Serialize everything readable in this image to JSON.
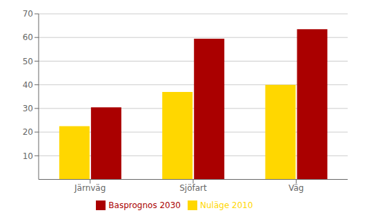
{
  "chart_data": {
    "type": "bar",
    "categories": [
      "Järnväg",
      "Sjöfart",
      "Väg"
    ],
    "series": [
      {
        "name": "Nuläge 2010",
        "color": "#FFD700",
        "values": [
          22.5,
          37.0,
          40.0
        ]
      },
      {
        "name": "Basprognos 2030",
        "color": "#AA0000",
        "values": [
          30.5,
          59.5,
          63.5
        ]
      }
    ],
    "ylim": [
      0,
      70
    ],
    "yticks": [
      10,
      20,
      30,
      40,
      50,
      60,
      70
    ],
    "grid": true,
    "legend": "bottom"
  }
}
